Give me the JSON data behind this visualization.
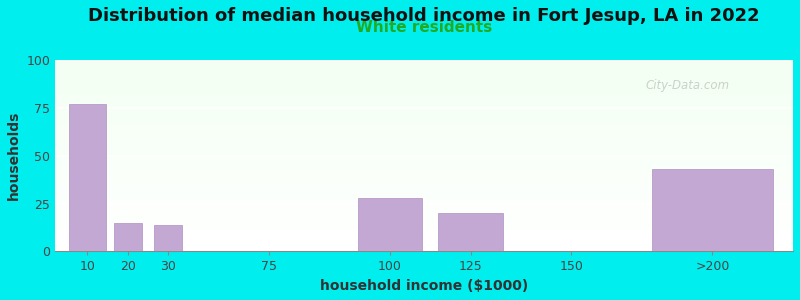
{
  "title": "Distribution of median household income in Fort Jesup, LA in 2022",
  "subtitle": "White residents",
  "xlabel": "household income ($1000)",
  "ylabel": "households",
  "background_color": "#00EEEE",
  "bar_color": "#c4a8d4",
  "bar_edge_color": "#b090c0",
  "categories": [
    "10",
    "20",
    "30",
    "75",
    "100",
    "125",
    "150",
    ">200"
  ],
  "values": [
    77,
    15,
    14,
    0,
    28,
    20,
    0,
    43
  ],
  "ylim": [
    0,
    100
  ],
  "yticks": [
    0,
    25,
    50,
    75,
    100
  ],
  "title_fontsize": 13,
  "subtitle_fontsize": 11,
  "subtitle_color": "#22aa22",
  "axis_label_fontsize": 10,
  "tick_fontsize": 9,
  "ylabel_fontsize": 10,
  "watermark": "City-Data.com"
}
